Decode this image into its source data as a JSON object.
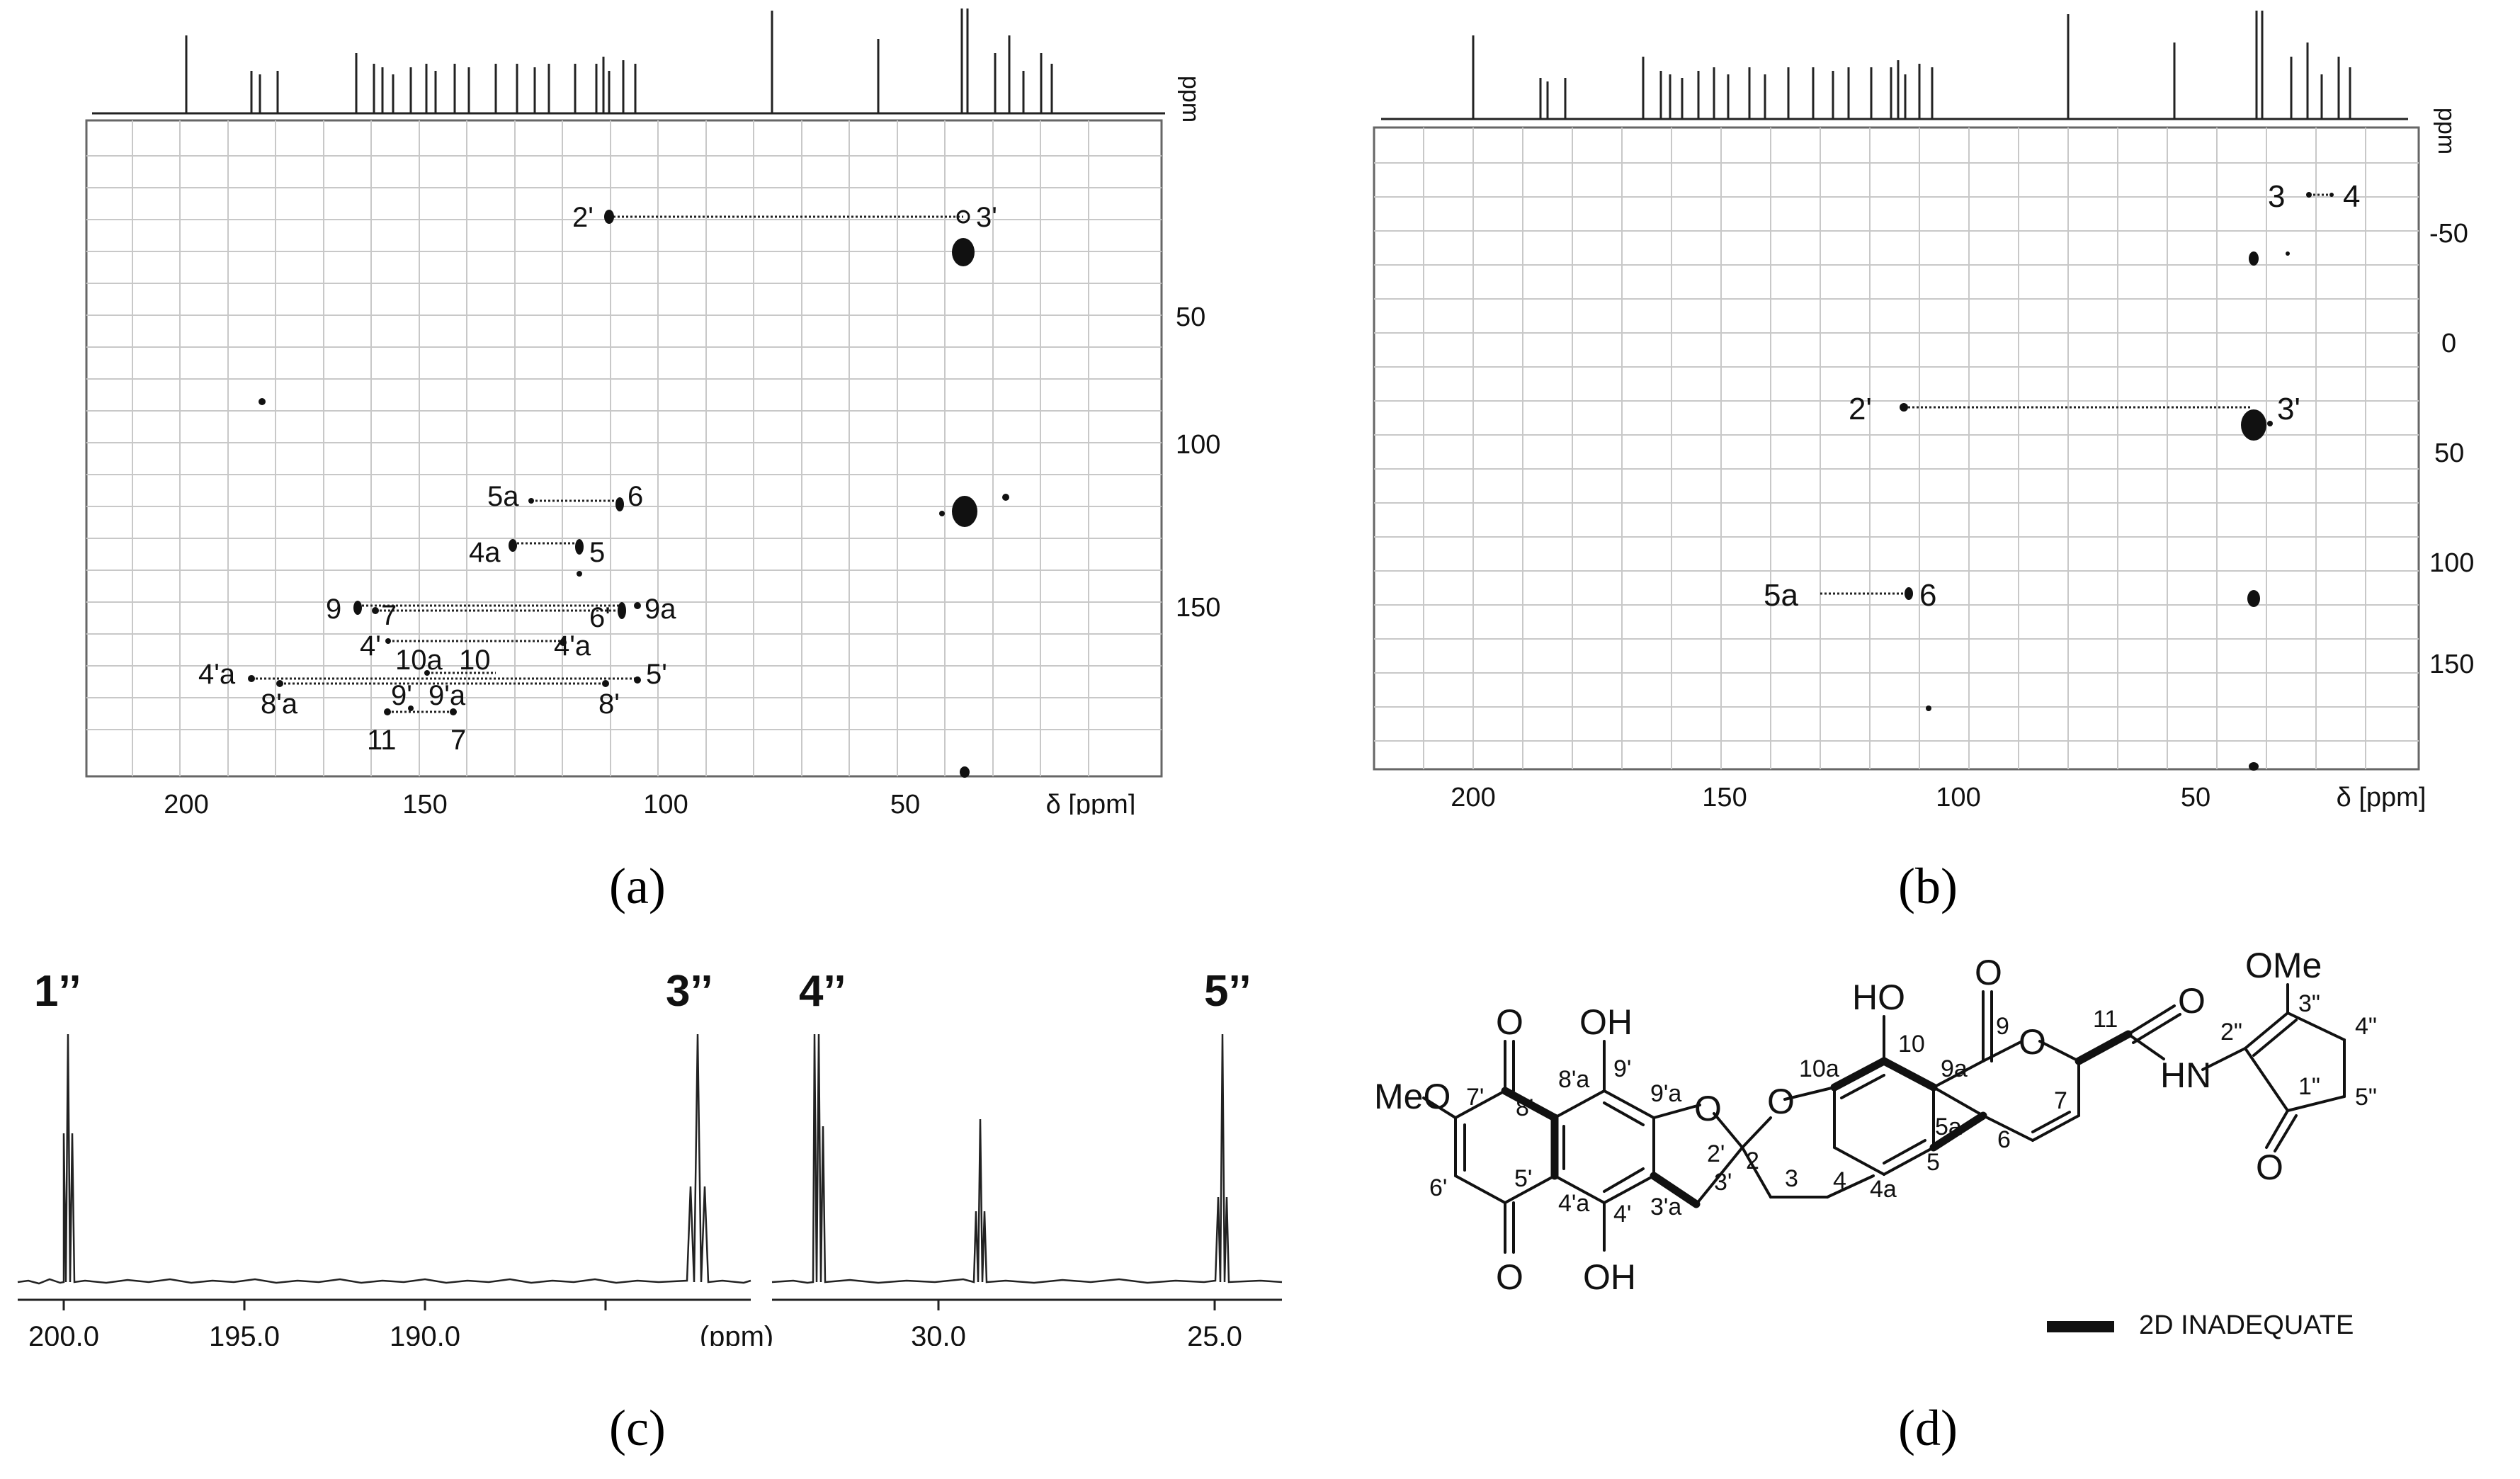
{
  "panel_a": {
    "caption": "(a)",
    "axis_x_label": "δ [ppm]",
    "axis_y_unit": "ppm",
    "x_ticks": [
      "200",
      "150",
      "100",
      "50"
    ],
    "y_ticks": [
      "50",
      "100",
      "150"
    ],
    "labels": [
      "2'",
      "3'",
      "5a",
      "6",
      "4a",
      "5",
      "9",
      "7",
      "6'",
      "9a",
      "4'",
      "4'a",
      "10a",
      "10",
      "4'a",
      "5'",
      "8'a",
      "8'",
      "9'",
      "9'a",
      "11",
      "7"
    ]
  },
  "panel_b": {
    "caption": "(b)",
    "axis_x_label": "δ [ppm]",
    "axis_y_unit": "ppm",
    "x_ticks": [
      "200",
      "150",
      "100",
      "50"
    ],
    "y_ticks": [
      "-50",
      "0",
      "50",
      "100",
      "150"
    ],
    "labels": [
      "3",
      "4",
      "2'",
      "3'",
      "5a",
      "6"
    ]
  },
  "panel_c": {
    "caption": "(c)",
    "peak_labels": [
      "1’’",
      "3’’",
      "4’’",
      "5’’"
    ],
    "x_ticks_left": [
      "200.0",
      "195.0",
      "190.0"
    ],
    "unit": "(ppm)",
    "x_ticks_right": [
      "30.0",
      "25.0"
    ]
  },
  "panel_d": {
    "caption": "(d)",
    "legend": "2D INADEQUATE",
    "groups": [
      "MeO",
      "OH",
      "OH",
      "HO",
      "OMe",
      "HN",
      "O",
      "O",
      "O",
      "O",
      "O",
      "O",
      "O",
      "O"
    ],
    "atoms": [
      "7'",
      "8'",
      "8'a",
      "9'",
      "9'a",
      "2'",
      "6'",
      "5'",
      "4'a",
      "4'",
      "3'a",
      "3'",
      "2",
      "3",
      "4",
      "4a",
      "5",
      "5a",
      "6",
      "7",
      "9a",
      "9",
      "10",
      "10a",
      "11",
      "3\"",
      "2\"",
      "1\"",
      "4\"",
      "5\""
    ]
  }
}
